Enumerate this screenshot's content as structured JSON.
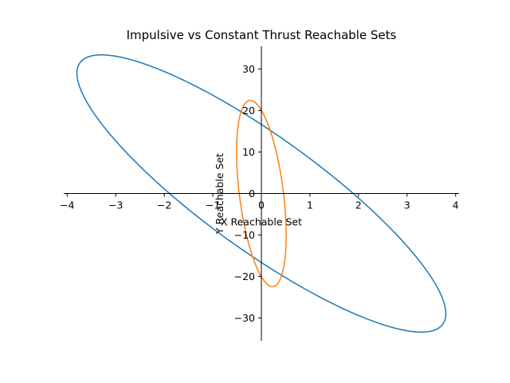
{
  "chart_data": {
    "type": "line",
    "title": "Impulsive vs Constant Thrust Reachable Sets",
    "xlabel": "X Reachable Set",
    "ylabel": "Y Reachable Set",
    "xlim": [
      -4.07,
      4.07
    ],
    "ylim": [
      -35.5,
      35.5
    ],
    "xticks": [
      -4,
      -3,
      -2,
      -1,
      0,
      1,
      2,
      3,
      4
    ],
    "yticks": [
      -30,
      -20,
      -10,
      0,
      10,
      20,
      30
    ],
    "grid": false,
    "spines": "centered",
    "series": [
      {
        "color": "#1f77b4",
        "ellipse": {
          "a": 0.98,
          "b": 8.6,
          "p": 3.67,
          "q": -32.3
        }
      },
      {
        "color": "#ff7f0e",
        "ellipse": {
          "a": 0.275,
          "b": 11.5,
          "p": 0.43,
          "q": -19.27
        }
      }
    ]
  }
}
